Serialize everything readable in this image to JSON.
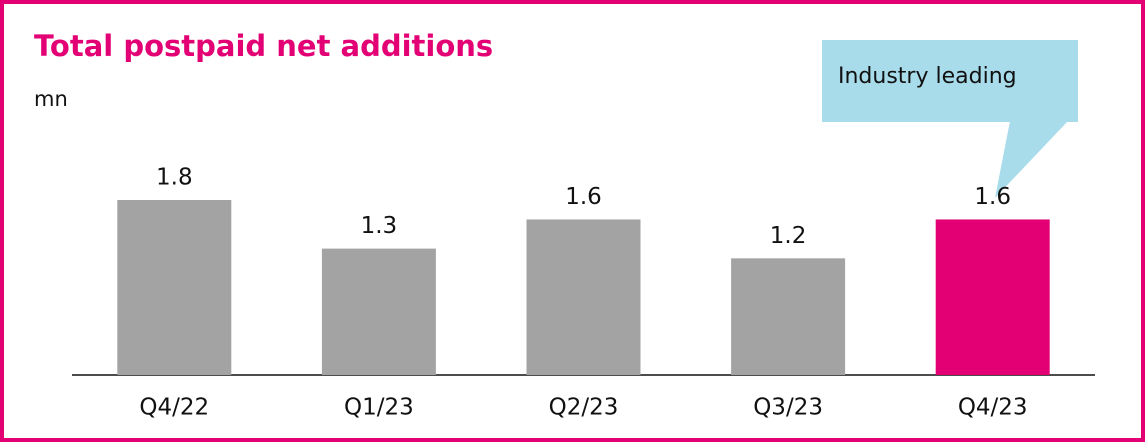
{
  "chart_data": {
    "type": "bar",
    "title": "Total postpaid net additions",
    "subtitle": "mn",
    "categories": [
      "Q4/22",
      "Q1/23",
      "Q2/23",
      "Q3/23",
      "Q4/23"
    ],
    "values": [
      1.8,
      1.3,
      1.6,
      1.2,
      1.6
    ],
    "colors": [
      "#a3a3a3",
      "#a3a3a3",
      "#a3a3a3",
      "#a3a3a3",
      "#e20074"
    ],
    "annotation": "Industry leading"
  }
}
